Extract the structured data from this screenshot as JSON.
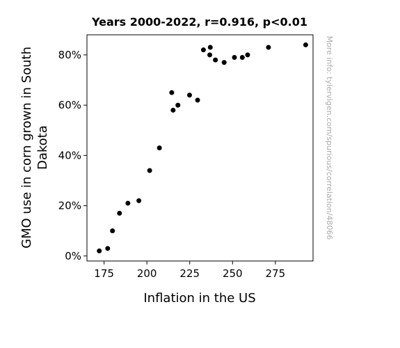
{
  "chart_data": {
    "type": "scatter",
    "title": "Years 2000-2022, r=0.916, p<0.01",
    "xlabel": "Inflation in the US",
    "ylabel_lines": [
      "GMO use in corn grown in South",
      "Dakota"
    ],
    "watermark": "More info: tylervigen.com/spurious/correlation/48066",
    "xlim": [
      165,
      297
    ],
    "ylim": [
      -2,
      88
    ],
    "xticks": [
      175,
      200,
      225,
      250,
      275
    ],
    "xtick_labels": [
      "175",
      "200",
      "225",
      "250",
      "275"
    ],
    "yticks": [
      0,
      20,
      40,
      60,
      80
    ],
    "ytick_labels": [
      "0%",
      "20%",
      "40%",
      "60%",
      "80%"
    ],
    "grid": false,
    "marker_color": "#000000",
    "points": [
      {
        "x": 172.2,
        "y": 2
      },
      {
        "x": 177.1,
        "y": 3
      },
      {
        "x": 179.9,
        "y": 10
      },
      {
        "x": 184.0,
        "y": 17
      },
      {
        "x": 188.9,
        "y": 21
      },
      {
        "x": 195.3,
        "y": 22
      },
      {
        "x": 201.6,
        "y": 34
      },
      {
        "x": 207.3,
        "y": 43
      },
      {
        "x": 215.3,
        "y": 58
      },
      {
        "x": 214.5,
        "y": 65
      },
      {
        "x": 218.1,
        "y": 60
      },
      {
        "x": 224.9,
        "y": 64
      },
      {
        "x": 229.6,
        "y": 62
      },
      {
        "x": 233.0,
        "y": 82
      },
      {
        "x": 236.7,
        "y": 80
      },
      {
        "x": 237.0,
        "y": 83
      },
      {
        "x": 240.0,
        "y": 78
      },
      {
        "x": 245.1,
        "y": 77
      },
      {
        "x": 251.1,
        "y": 79
      },
      {
        "x": 255.7,
        "y": 79
      },
      {
        "x": 258.8,
        "y": 80
      },
      {
        "x": 270.97,
        "y": 83
      },
      {
        "x": 292.7,
        "y": 84
      }
    ]
  }
}
